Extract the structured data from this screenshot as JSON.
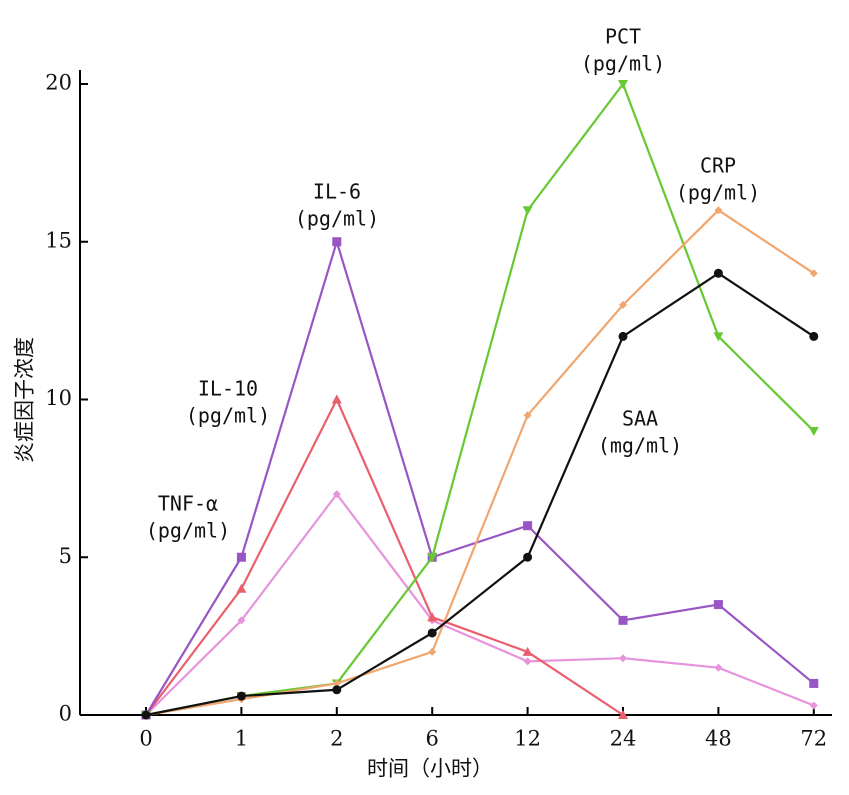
{
  "chart_data": {
    "type": "line",
    "x_label": "时间（小时）",
    "y_label": "炎症因子浓度",
    "categories": [
      "0",
      "1",
      "2",
      "6",
      "12",
      "24",
      "48",
      "72"
    ],
    "ylim": [
      0,
      20
    ],
    "yticks": [
      0,
      5,
      10,
      15,
      20
    ],
    "grid": false,
    "series": [
      {
        "name": "TNF-α",
        "unit": "(pg/ml)",
        "color": "#e694dc",
        "marker": "diamond",
        "values": [
          0,
          3,
          7,
          3,
          1.7,
          1.8,
          1.5,
          0.3
        ]
      },
      {
        "name": "IL-10",
        "unit": "(pg/ml)",
        "color": "#ea5f6c",
        "marker": "triangle",
        "values": [
          0,
          4,
          10,
          3.1,
          2,
          0,
          null,
          null
        ]
      },
      {
        "name": "IL-6",
        "unit": "(pg/ml)",
        "color": "#9856c4",
        "marker": "square",
        "values": [
          0,
          5,
          15,
          5,
          6,
          3,
          3.5,
          1
        ]
      },
      {
        "name": "PCT",
        "unit": "(pg/ml)",
        "color": "#66c832",
        "marker": "down-triangle",
        "values": [
          0,
          0.6,
          1,
          5,
          16,
          20,
          12,
          9
        ]
      },
      {
        "name": "CRP",
        "unit": "(pg/ml)",
        "color": "#f0a66e",
        "marker": "diamond",
        "values": [
          0,
          0.5,
          1,
          2,
          9.5,
          13,
          16,
          14
        ]
      },
      {
        "name": "SAA",
        "unit": "(mg/ml)",
        "color": "#111111",
        "marker": "circle",
        "values": [
          0,
          0.6,
          0.8,
          2.6,
          5,
          12,
          14,
          12
        ]
      }
    ]
  }
}
